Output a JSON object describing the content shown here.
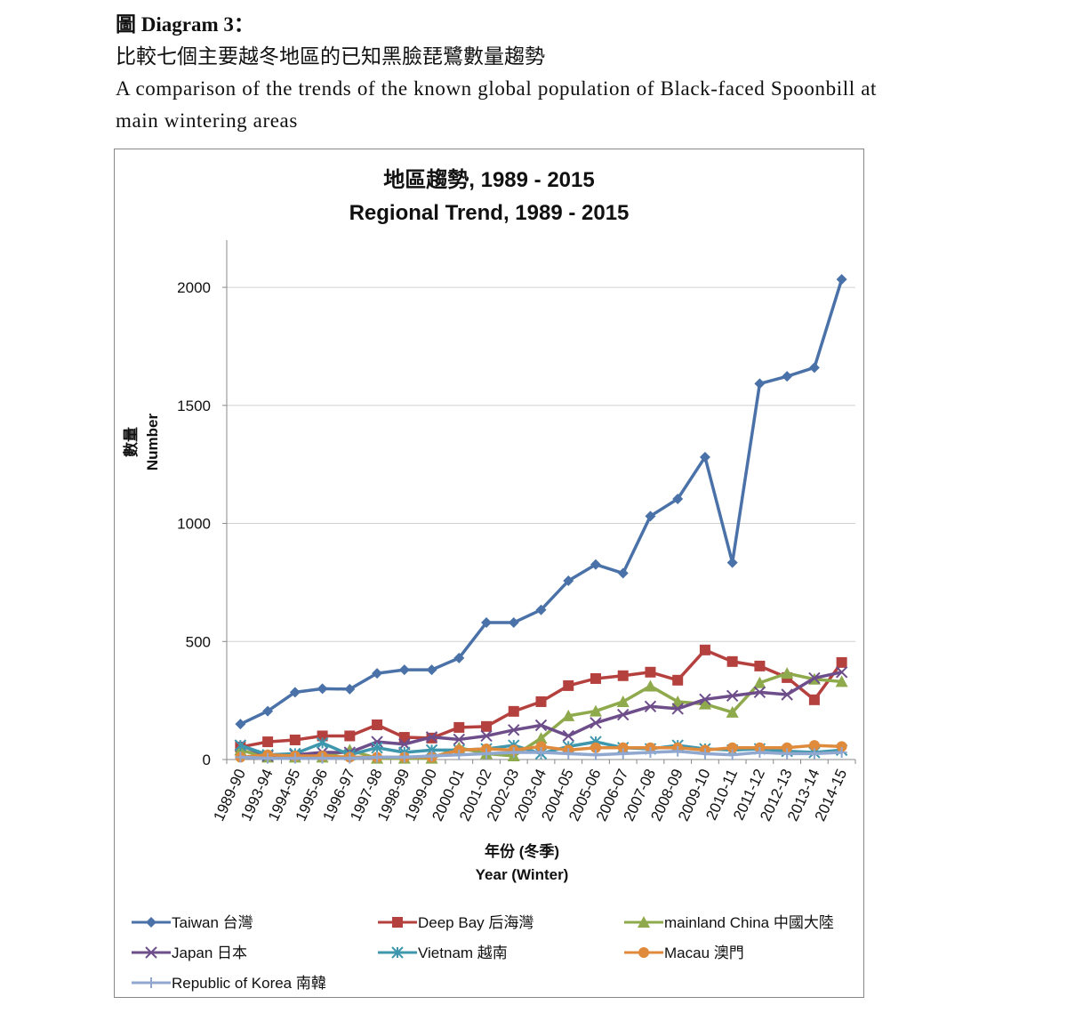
{
  "document": {
    "heading": "圖 Diagram 3：",
    "subtitle_zh": "比較七個主要越冬地區的已知黑臉琵鷺數量趨勢",
    "subtitle_en": "A comparison of the trends of the known global population of Black-faced Spoonbill at main wintering areas"
  },
  "chart_data": {
    "type": "line",
    "title": [
      "地區趨勢, 1989 - 2015",
      "Regional Trend, 1989 - 2015"
    ],
    "y_label": [
      "數量",
      "Number"
    ],
    "x_label": [
      "年份 (冬季)",
      "Year (Winter)"
    ],
    "categories": [
      "1989-90",
      "1993-94",
      "1994-95",
      "1995-96",
      "1996-97",
      "1997-98",
      "1998-99",
      "1999-00",
      "2000-01",
      "2001-02",
      "2002-03",
      "2003-04",
      "2004-05",
      "2005-06",
      "2006-07",
      "2007-08",
      "2008-09",
      "2009-10",
      "2010-11",
      "2011-12",
      "2012-13",
      "2013-14",
      "2014-15"
    ],
    "ylim": [
      0,
      2200
    ],
    "yticks": [
      0,
      500,
      1000,
      1500,
      2000
    ],
    "grid": true,
    "legend": "bottom",
    "series": [
      {
        "name": "Taiwan 台灣",
        "color": "#4a72a8",
        "marker": "diamond",
        "values": [
          150,
          205,
          285,
          300,
          298,
          365,
          380,
          380,
          430,
          580,
          580,
          634,
          757,
          826,
          789,
          1031,
          1104,
          1281,
          834,
          1592,
          1623,
          1660,
          2034
        ]
      },
      {
        "name": "Deep Bay 后海灣",
        "color": "#b5413f",
        "marker": "square",
        "values": [
          53,
          75,
          83,
          100,
          100,
          147,
          94,
          91,
          136,
          140,
          204,
          245,
          313,
          343,
          355,
          370,
          336,
          464,
          415,
          396,
          347,
          253,
          411
        ]
      },
      {
        "name": "mainland China 中國大陸",
        "color": "#8faa4c",
        "marker": "triangle",
        "values": [
          40,
          10,
          10,
          10,
          40,
          5,
          5,
          5,
          50,
          25,
          15,
          90,
          185,
          205,
          245,
          311,
          245,
          235,
          200,
          325,
          365,
          340,
          330
        ]
      },
      {
        "name": "Japan 日本",
        "color": "#6d4e8a",
        "marker": "x",
        "values": [
          60,
          15,
          20,
          30,
          30,
          75,
          65,
          95,
          85,
          100,
          125,
          145,
          100,
          155,
          190,
          225,
          215,
          255,
          270,
          285,
          275,
          345,
          370
        ]
      },
      {
        "name": "Vietnam 越南",
        "color": "#3f97ad",
        "marker": "asterisk",
        "values": [
          60,
          20,
          25,
          70,
          20,
          50,
          30,
          40,
          40,
          45,
          60,
          25,
          55,
          75,
          50,
          45,
          60,
          45,
          40,
          45,
          35,
          30,
          40
        ]
      },
      {
        "name": "Macau 澳門",
        "color": "#e08a3c",
        "marker": "circle",
        "values": [
          10,
          20,
          15,
          15,
          10,
          10,
          10,
          10,
          40,
          45,
          40,
          55,
          40,
          50,
          50,
          50,
          50,
          40,
          50,
          50,
          50,
          60,
          55
        ]
      },
      {
        "name": "Republic of Korea 南韓",
        "color": "#90a8d0",
        "marker": "plus",
        "values": [
          10,
          5,
          5,
          5,
          5,
          10,
          10,
          15,
          20,
          25,
          30,
          30,
          25,
          20,
          25,
          30,
          35,
          25,
          20,
          30,
          25,
          25,
          30
        ]
      }
    ]
  }
}
